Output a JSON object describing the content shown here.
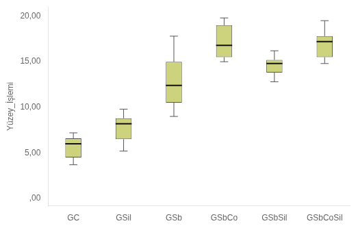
{
  "chart_data": {
    "type": "box",
    "categories": [
      "GC",
      "GSil",
      "GSb",
      "GSbCo",
      "GSbSil",
      "GSbCoSil"
    ],
    "boxes": [
      {
        "q1": 4.5,
        "median": 6.0,
        "q3": 6.6,
        "whisker_low": 3.7,
        "whisker_high": 7.2
      },
      {
        "q1": 6.5,
        "median": 8.2,
        "q3": 8.8,
        "whisker_low": 5.2,
        "whisker_high": 9.8
      },
      {
        "q1": 10.5,
        "median": 12.4,
        "q3": 15.0,
        "whisker_low": 9.0,
        "whisker_high": 17.8
      },
      {
        "q1": 15.5,
        "median": 16.8,
        "q3": 19.0,
        "whisker_low": 15.0,
        "whisker_high": 19.8
      },
      {
        "q1": 13.8,
        "median": 14.8,
        "q3": 15.2,
        "whisker_low": 12.8,
        "whisker_high": 16.2
      },
      {
        "q1": 15.5,
        "median": 17.2,
        "q3": 17.8,
        "whisker_low": 14.8,
        "whisker_high": 19.5
      }
    ],
    "y_label": "Yüzey_İşlemi",
    "ylim": [
      -0.8,
      21.0
    ],
    "yticks": [
      {
        "value": 0.0,
        "label": ",00"
      },
      {
        "value": 5.0,
        "label": "5,00"
      },
      {
        "value": 10.0,
        "label": "10,00"
      },
      {
        "value": 15.0,
        "label": "15,00"
      },
      {
        "value": 20.0,
        "label": "20,00"
      }
    ],
    "color": "#cdd27c",
    "grid": false
  }
}
